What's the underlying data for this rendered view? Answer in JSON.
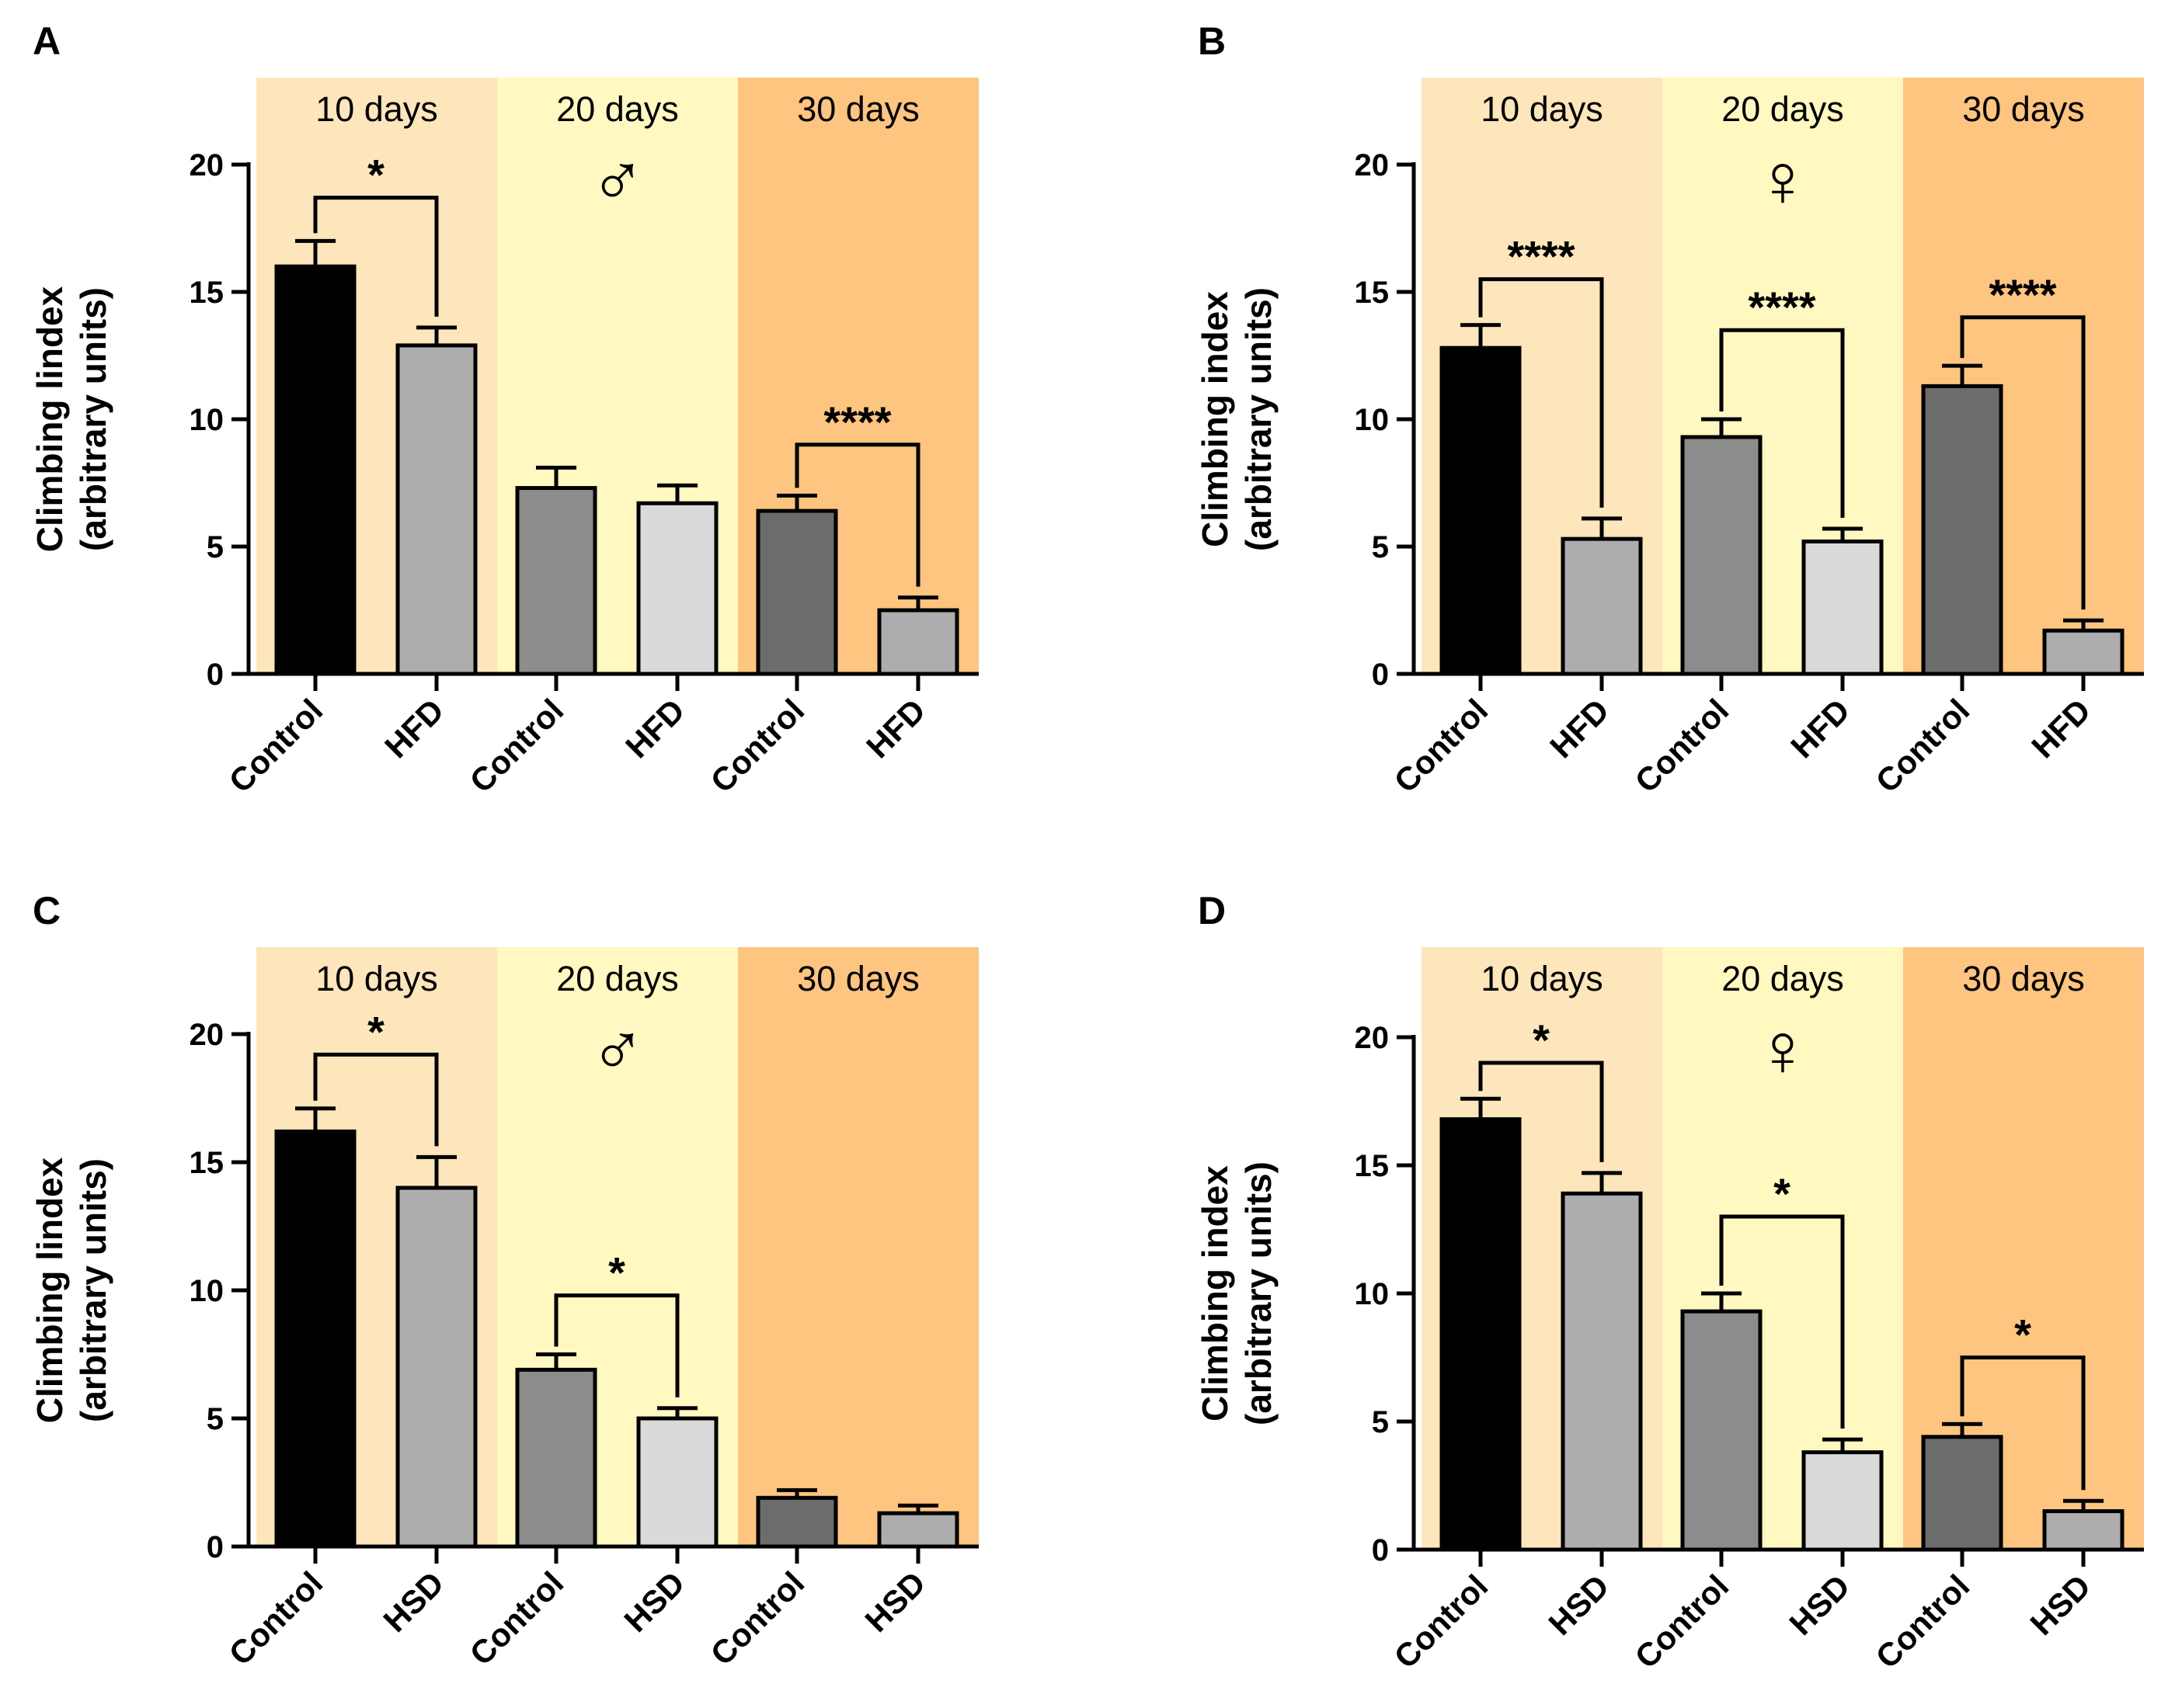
{
  "figure": {
    "colors": {
      "band_10": "#fde6bb",
      "band_20": "#fff8c0",
      "band_30": "#fdc57f",
      "bar_control_10": "#000000",
      "bar_treat_10": "#adadad",
      "bar_control_20": "#8c8c8c",
      "bar_treat_20": "#dadada",
      "bar_control_30": "#6c6c6c",
      "bar_treat_30": "#adadad"
    }
  },
  "chart_data": [
    {
      "type": "bar",
      "panel": "A",
      "ylabel": [
        "Climbing lindex",
        "(arbitrary units)"
      ],
      "ylim": [
        0,
        20
      ],
      "yticks": [
        0,
        5,
        10,
        15,
        20
      ],
      "periods": [
        "10 days",
        "20 days",
        "30 days"
      ],
      "sex_symbol": "♂",
      "categories": [
        "Control",
        "HFD",
        "Control",
        "HFD",
        "Control",
        "HFD"
      ],
      "values": [
        16.0,
        12.9,
        7.3,
        6.7,
        6.4,
        2.5
      ],
      "errors": [
        1.0,
        0.7,
        0.8,
        0.7,
        0.6,
        0.5
      ],
      "significance": [
        {
          "from": 0,
          "to": 1,
          "label": "*",
          "level": 18.7
        },
        {
          "from": 4,
          "to": 5,
          "label": "****",
          "level": 9.0
        }
      ]
    },
    {
      "type": "bar",
      "panel": "B",
      "ylabel": [
        "Climbing index",
        "(arbitrary units)"
      ],
      "ylim": [
        0,
        20
      ],
      "yticks": [
        0,
        5,
        10,
        15,
        20
      ],
      "periods": [
        "10 days",
        "20 days",
        "30 days"
      ],
      "sex_symbol": "♀",
      "categories": [
        "Control",
        "HFD",
        "Control",
        "HFD",
        "Control",
        "HFD"
      ],
      "values": [
        12.8,
        5.3,
        9.3,
        5.2,
        11.3,
        1.7
      ],
      "errors": [
        0.9,
        0.8,
        0.7,
        0.5,
        0.8,
        0.4
      ],
      "significance": [
        {
          "from": 0,
          "to": 1,
          "label": "****",
          "level": 15.5
        },
        {
          "from": 2,
          "to": 3,
          "label": "****",
          "level": 13.5
        },
        {
          "from": 4,
          "to": 5,
          "label": "****",
          "level": 14.0
        }
      ]
    },
    {
      "type": "bar",
      "panel": "C",
      "ylabel": [
        "Climbing lindex",
        "(arbitrary units)"
      ],
      "ylim": [
        0,
        20
      ],
      "yticks": [
        0,
        5,
        10,
        15,
        20
      ],
      "periods": [
        "10 days",
        "20 days",
        "30 days"
      ],
      "sex_symbol": "♂",
      "categories": [
        "Control",
        "HSD",
        "Control",
        "HSD",
        "Control",
        "HSD"
      ],
      "values": [
        16.2,
        14.0,
        6.9,
        5.0,
        1.9,
        1.3
      ],
      "errors": [
        0.9,
        1.2,
        0.6,
        0.4,
        0.3,
        0.3
      ],
      "significance": [
        {
          "from": 0,
          "to": 1,
          "label": "*",
          "level": 19.2
        },
        {
          "from": 2,
          "to": 3,
          "label": "*",
          "level": 9.8
        }
      ]
    },
    {
      "type": "bar",
      "panel": "D",
      "ylabel": [
        "Climbing index",
        "(arbitrary units)"
      ],
      "ylim": [
        0,
        20
      ],
      "yticks": [
        0,
        5,
        10,
        15,
        20
      ],
      "periods": [
        "10 days",
        "20 days",
        "30 days"
      ],
      "sex_symbol": "♀",
      "categories": [
        "Control",
        "HSD",
        "Control",
        "HSD",
        "Control",
        "HSD"
      ],
      "values": [
        16.8,
        13.9,
        9.3,
        3.8,
        4.4,
        1.5
      ],
      "errors": [
        0.8,
        0.8,
        0.7,
        0.5,
        0.5,
        0.4
      ],
      "significance": [
        {
          "from": 0,
          "to": 1,
          "label": "*",
          "level": 19.0
        },
        {
          "from": 2,
          "to": 3,
          "label": "*",
          "level": 13.0
        },
        {
          "from": 4,
          "to": 5,
          "label": "*",
          "level": 7.5
        }
      ]
    }
  ]
}
